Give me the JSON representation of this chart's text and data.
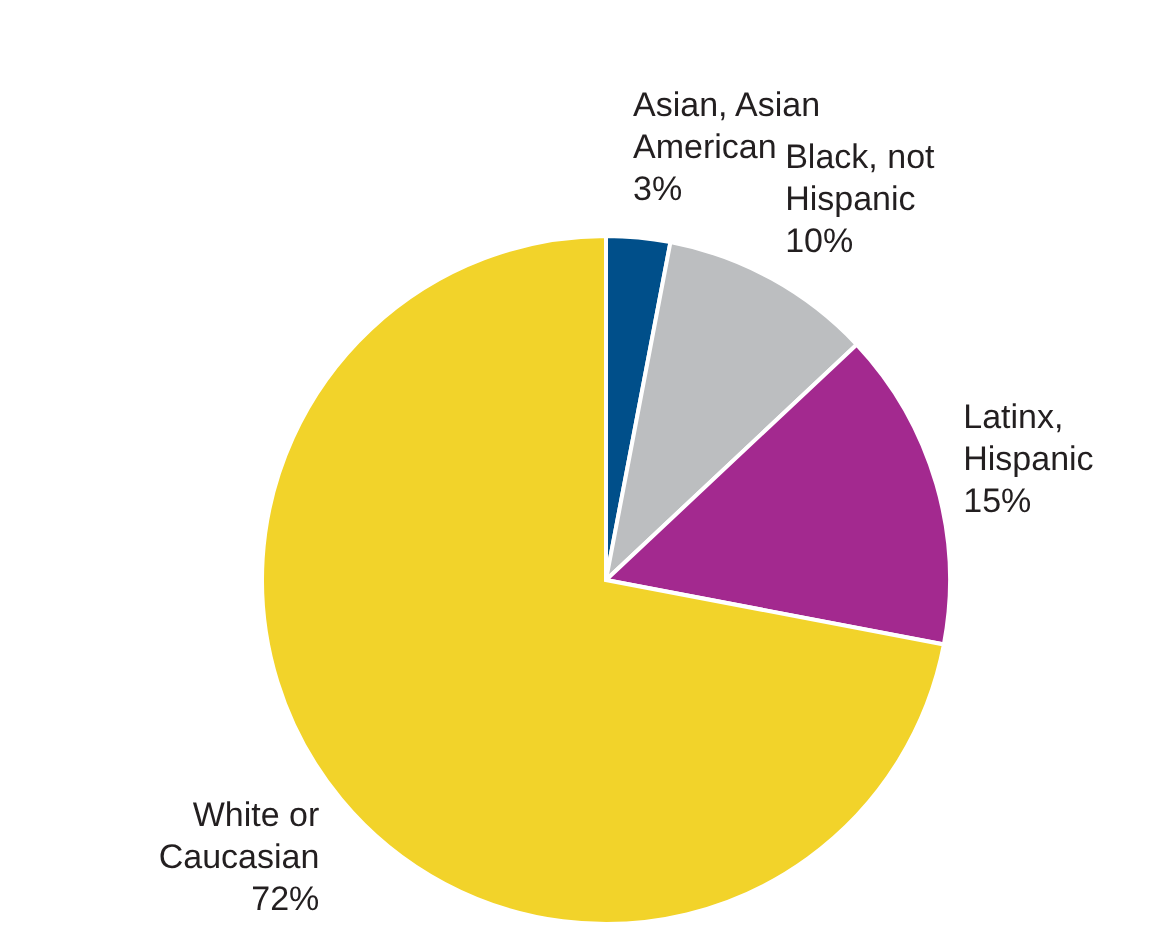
{
  "chart_data": {
    "type": "pie",
    "categories": [
      "Asian, Asian American",
      "Black, not Hispanic",
      "Latinx, Hispanic",
      "White or Caucasian"
    ],
    "values": [
      3,
      10,
      15,
      72
    ],
    "value_labels": [
      "3%",
      "10%",
      "15%",
      "72%"
    ],
    "colors": [
      "#004f8a",
      "#bcbec0",
      "#a3298f",
      "#f2d32a"
    ],
    "legend": false
  }
}
